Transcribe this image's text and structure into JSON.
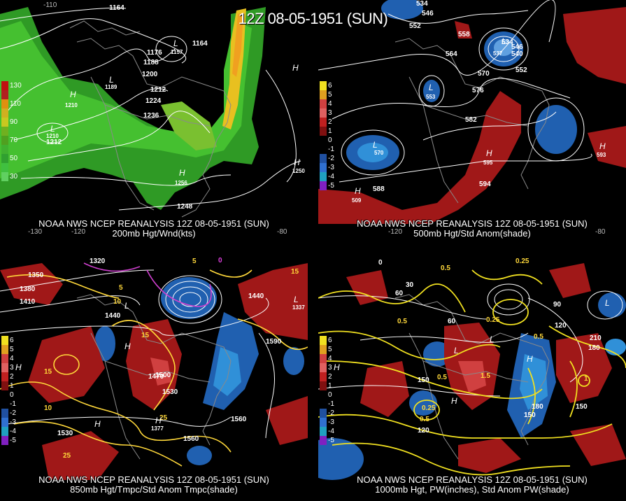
{
  "header": {
    "title": "12Z 08-05-1951 (SUN)"
  },
  "colors": {
    "land_border": "#8a8a8a",
    "contour": "#ffffff",
    "temp_contour": "#ffd83a",
    "anom_pos": "#a01818",
    "anom_neg": "#2060b0",
    "wind": "#33bb22"
  },
  "panels": [
    {
      "name": "200mb",
      "caption_line1": "NOAA NWS NCEP REANALYSIS 12Z 08-05-1951 (SUN)",
      "caption_line2": "200mb Hgt/Wnd(kts)",
      "colorbar": [
        {
          "label": "130",
          "color": "#c01010"
        },
        {
          "label": "",
          "color": "#b02020"
        },
        {
          "label": "110",
          "color": "#e09010"
        },
        {
          "label": "",
          "color": "#d0b020"
        },
        {
          "label": "90",
          "color": "#c8c820"
        },
        {
          "label": "",
          "color": "#70b020"
        },
        {
          "label": "70",
          "color": "#50a020"
        },
        {
          "label": "",
          "color": "#40b030"
        },
        {
          "label": "50",
          "color": "#30a030"
        },
        {
          "label": "",
          "color": "#40c040"
        },
        {
          "label": "30",
          "color": "#60d060"
        }
      ],
      "labels": [
        "1164",
        "1164",
        "1176",
        "1188",
        "1200",
        "1212",
        "1224",
        "1236",
        "1212",
        "1248",
        "1256",
        "1250",
        "L",
        "L",
        "H",
        "H",
        "H",
        "H",
        "L",
        "1157",
        "1189",
        "1210",
        "1210",
        "-130",
        "-120",
        "-110",
        "-80"
      ]
    },
    {
      "name": "500mb",
      "caption_line1": "NOAA NWS NCEP REANALYSIS 12Z 08-05-1951 (SUN)",
      "caption_line2": "500mb Hgt/Std Anom(shade)",
      "colorbar": [
        {
          "label": "6",
          "color": "#f0e020"
        },
        {
          "label": "5",
          "color": "#e0a020"
        },
        {
          "label": "4",
          "color": "#d04040"
        },
        {
          "label": "3",
          "color": "#e06060"
        },
        {
          "label": "2",
          "color": "#c02020"
        },
        {
          "label": "1",
          "color": "#801010"
        },
        {
          "label": "0",
          "color": "#000000"
        },
        {
          "label": "-1",
          "color": "#000000"
        },
        {
          "label": "-2",
          "color": "#2050a0"
        },
        {
          "label": "-3",
          "color": "#3070d0"
        },
        {
          "label": "-4",
          "color": "#20a0c0"
        },
        {
          "label": "-5",
          "color": "#8020c0"
        }
      ],
      "labels": [
        "534",
        "546",
        "552",
        "558",
        "534",
        "546",
        "540",
        "552",
        "564",
        "570",
        "576",
        "582",
        "588",
        "594",
        "L",
        "L",
        "L",
        "H",
        "H",
        "H",
        "537",
        "553",
        "570",
        "509",
        "595",
        "593",
        "-120",
        "-80"
      ]
    },
    {
      "name": "850mb",
      "caption_line1": "NOAA NWS NCEP REANALYSIS 12Z 08-05-1951 (SUN)",
      "caption_line2": "850mb Hgt/Tmpc/Std Anom Tmpc(shade)",
      "colorbar": [
        {
          "label": "6",
          "color": "#f0e020"
        },
        {
          "label": "5",
          "color": "#e0a020"
        },
        {
          "label": "4",
          "color": "#d04040"
        },
        {
          "label": "3",
          "color": "#e06060"
        },
        {
          "label": "2",
          "color": "#c02020"
        },
        {
          "label": "1",
          "color": "#801010"
        },
        {
          "label": "0",
          "color": "#000000"
        },
        {
          "label": "-1",
          "color": "#000000"
        },
        {
          "label": "-2",
          "color": "#2050a0"
        },
        {
          "label": "-3",
          "color": "#3070d0"
        },
        {
          "label": "-4",
          "color": "#20a0c0"
        },
        {
          "label": "-5",
          "color": "#8020c0"
        }
      ],
      "labels": [
        "1320",
        "1350",
        "1380",
        "1410",
        "1440",
        "1440",
        "1590",
        "1530",
        "1560",
        "1560",
        "1500",
        "1530",
        "1470",
        "15",
        "15",
        "10",
        "10",
        "5",
        "0",
        "5",
        "15",
        "25",
        "25",
        "H",
        "H",
        "H",
        "H",
        "L",
        "L",
        "1337",
        "1377"
      ]
    },
    {
      "name": "1000mb",
      "caption_line1": "NOAA NWS NCEP REANALYSIS 12Z 08-05-1951 (SUN)",
      "caption_line2": "1000mb Hgt, PW(inches), Std Anom PW(shade)",
      "colorbar": [
        {
          "label": "6",
          "color": "#f0e020"
        },
        {
          "label": "5",
          "color": "#e0a020"
        },
        {
          "label": "4",
          "color": "#d04040"
        },
        {
          "label": "3",
          "color": "#e06060"
        },
        {
          "label": "2",
          "color": "#c02020"
        },
        {
          "label": "1",
          "color": "#801010"
        },
        {
          "label": "0",
          "color": "#000000"
        },
        {
          "label": "-1",
          "color": "#000000"
        },
        {
          "label": "-2",
          "color": "#2050a0"
        },
        {
          "label": "-3",
          "color": "#3070d0"
        },
        {
          "label": "-4",
          "color": "#20a0c0"
        },
        {
          "label": "-5",
          "color": "#8020c0"
        }
      ],
      "labels": [
        "0",
        "30",
        "60",
        "90",
        "60",
        "120",
        "210",
        "180",
        "150",
        "120",
        "150",
        "180",
        "150",
        "0.25",
        "0.5",
        "0.5",
        "0.5",
        "0.25",
        "0.5",
        "0.25",
        "0.5",
        "1.5",
        "1",
        "L",
        "L",
        "H",
        "H",
        "H",
        "L"
      ]
    }
  ]
}
